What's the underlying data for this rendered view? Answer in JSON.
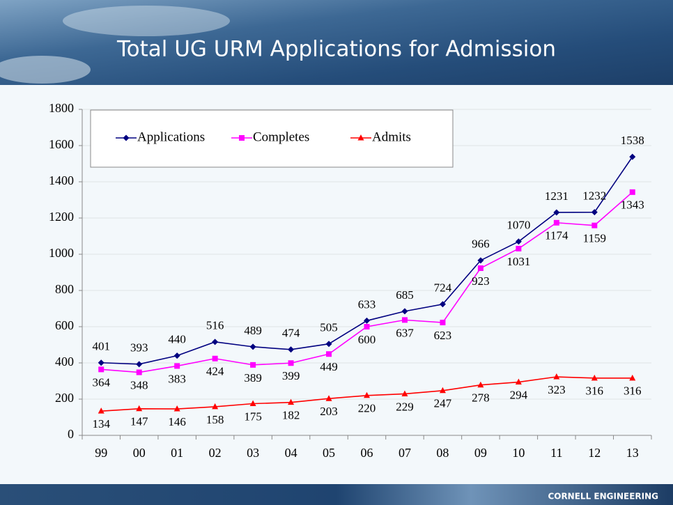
{
  "chart_data": {
    "type": "line",
    "title": "Total UG URM Applications for Admission",
    "categories": [
      "99",
      "00",
      "01",
      "02",
      "03",
      "04",
      "05",
      "06",
      "07",
      "08",
      "09",
      "10",
      "11",
      "12",
      "13"
    ],
    "series": [
      {
        "name": "Applications",
        "color": "#000080",
        "marker": "diamond",
        "values": [
          401,
          393,
          440,
          516,
          489,
          474,
          505,
          633,
          685,
          724,
          966,
          1070,
          1231,
          1232,
          1538
        ]
      },
      {
        "name": "Completes",
        "color": "#ff00ff",
        "marker": "square",
        "values": [
          364,
          348,
          383,
          424,
          389,
          399,
          449,
          600,
          637,
          623,
          923,
          1031,
          1174,
          1159,
          1343
        ]
      },
      {
        "name": "Admits",
        "color": "#ff0000",
        "marker": "triangle",
        "values": [
          134,
          147,
          146,
          158,
          175,
          182,
          203,
          220,
          229,
          247,
          278,
          294,
          323,
          316,
          316
        ]
      }
    ],
    "ylim": [
      0,
      1800
    ],
    "yticks": [
      0,
      200,
      400,
      600,
      800,
      1000,
      1200,
      1400,
      1600,
      1800
    ],
    "grid": true,
    "legend": "top-left"
  },
  "footer": "CORNELL ENGINEERING"
}
